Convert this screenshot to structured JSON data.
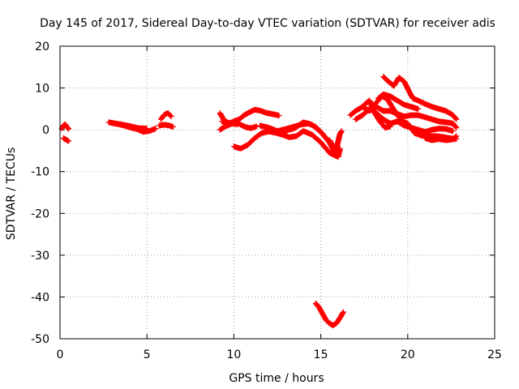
{
  "chart_data": {
    "type": "scatter",
    "title": "Day 145 of 2017, Sidereal Day-to-day VTEC variation (SDTVAR) for receiver adis",
    "xlabel": "GPS time / hours",
    "ylabel": "SDTVAR / TECUs",
    "xlim": [
      0,
      25
    ],
    "ylim": [
      -50,
      20
    ],
    "xticks": [
      0,
      5,
      10,
      15,
      20,
      25
    ],
    "yticks": [
      -50,
      -40,
      -30,
      -20,
      -10,
      0,
      10,
      20
    ],
    "grid": true,
    "legend": "none",
    "marker": "plus",
    "series": [
      {
        "name": "SDTVAR",
        "color": "#ff0000",
        "segments": [
          [
            [
              0.1,
              0.3
            ],
            [
              0.2,
              1.0
            ],
            [
              0.3,
              1.3
            ],
            [
              0.4,
              0.6
            ],
            [
              0.5,
              0.2
            ]
          ],
          [
            [
              0.2,
              -2.0
            ],
            [
              0.35,
              -2.4
            ],
            [
              0.5,
              -2.7
            ]
          ],
          [
            [
              2.8,
              1.8
            ],
            [
              3.2,
              1.5
            ],
            [
              3.6,
              1.1
            ],
            [
              4.0,
              0.6
            ],
            [
              4.4,
              0.2
            ],
            [
              4.8,
              -0.5
            ],
            [
              5.2,
              -0.2
            ],
            [
              5.5,
              0.3
            ]
          ],
          [
            [
              3.0,
              1.6
            ],
            [
              3.5,
              1.3
            ],
            [
              4.0,
              0.9
            ],
            [
              4.5,
              0.4
            ],
            [
              5.0,
              0.3
            ]
          ],
          [
            [
              5.8,
              2.5
            ],
            [
              6.0,
              3.6
            ],
            [
              6.2,
              4.0
            ],
            [
              6.4,
              3.2
            ]
          ],
          [
            [
              5.7,
              1.0
            ],
            [
              6.0,
              1.2
            ],
            [
              6.3,
              1.0
            ],
            [
              6.5,
              0.7
            ]
          ],
          [
            [
              9.2,
              4.0
            ],
            [
              9.4,
              2.5
            ],
            [
              9.7,
              1.5
            ],
            [
              10.0,
              2.0
            ],
            [
              10.3,
              2.5
            ],
            [
              10.6,
              3.5
            ],
            [
              10.9,
              4.2
            ],
            [
              11.2,
              4.8
            ],
            [
              11.5,
              4.6
            ],
            [
              11.9,
              4.0
            ],
            [
              12.3,
              3.7
            ],
            [
              12.6,
              3.4
            ]
          ],
          [
            [
              9.2,
              0.0
            ],
            [
              9.5,
              0.8
            ],
            [
              9.8,
              1.3
            ],
            [
              10.1,
              1.8
            ],
            [
              10.4,
              1.2
            ],
            [
              10.7,
              0.6
            ],
            [
              11.0,
              0.4
            ],
            [
              11.3,
              0.8
            ]
          ],
          [
            [
              9.3,
              2.0
            ],
            [
              9.6,
              1.8
            ],
            [
              9.9,
              1.5
            ],
            [
              10.2,
              1.3
            ]
          ],
          [
            [
              10.0,
              -4.0
            ],
            [
              10.4,
              -4.5
            ],
            [
              10.8,
              -3.6
            ],
            [
              11.2,
              -2.0
            ],
            [
              11.6,
              -0.8
            ],
            [
              12.0,
              -0.4
            ],
            [
              12.4,
              -0.7
            ],
            [
              12.8,
              -1.2
            ],
            [
              13.2,
              -1.8
            ],
            [
              13.6,
              -1.5
            ],
            [
              14.0,
              -0.3
            ],
            [
              14.5,
              -1.2
            ],
            [
              15.0,
              -3.0
            ],
            [
              15.5,
              -5.5
            ],
            [
              16.0,
              -6.5
            ],
            [
              16.1,
              -4.5
            ]
          ],
          [
            [
              11.5,
              1.0
            ],
            [
              12.0,
              0.5
            ],
            [
              12.5,
              -0.3
            ],
            [
              13.0,
              0.2
            ],
            [
              13.5,
              0.8
            ],
            [
              13.9,
              1.3
            ],
            [
              14.3,
              1.5
            ],
            [
              14.7,
              0.7
            ],
            [
              15.1,
              -1.0
            ],
            [
              15.5,
              -3.0
            ],
            [
              15.8,
              -5.0
            ],
            [
              16.0,
              -6.0
            ]
          ],
          [
            [
              12.6,
              -0.5
            ],
            [
              13.0,
              -0.2
            ],
            [
              13.5,
              0.4
            ],
            [
              14.0,
              1.8
            ],
            [
              14.5,
              1.2
            ],
            [
              15.0,
              -0.5
            ],
            [
              15.5,
              -3.0
            ],
            [
              15.8,
              -5.5
            ],
            [
              16.1,
              -5.0
            ]
          ],
          [
            [
              15.5,
              -2.5
            ],
            [
              15.7,
              -4.0
            ],
            [
              15.9,
              -4.5
            ],
            [
              16.1,
              -1.0
            ],
            [
              16.2,
              -0.3
            ]
          ],
          [
            [
              14.7,
              -41.5
            ],
            [
              14.9,
              -42.5
            ],
            [
              15.1,
              -44.0
            ],
            [
              15.3,
              -45.5
            ],
            [
              15.5,
              -46.3
            ],
            [
              15.7,
              -46.8
            ],
            [
              15.9,
              -46.3
            ],
            [
              16.1,
              -45.0
            ],
            [
              16.3,
              -43.6
            ]
          ],
          [
            [
              16.7,
              3.5
            ],
            [
              17.0,
              4.5
            ],
            [
              17.4,
              5.5
            ],
            [
              17.8,
              4.5
            ],
            [
              18.2,
              5.5
            ],
            [
              18.6,
              4.5
            ],
            [
              19.0,
              4.5
            ],
            [
              19.4,
              3.8
            ],
            [
              19.8,
              3.2
            ],
            [
              20.2,
              3.5
            ],
            [
              20.6,
              3.5
            ],
            [
              21.0,
              3.0
            ],
            [
              21.4,
              2.5
            ],
            [
              21.8,
              2.0
            ],
            [
              22.2,
              1.8
            ],
            [
              22.6,
              1.5
            ],
            [
              22.8,
              0.5
            ]
          ],
          [
            [
              17.0,
              2.5
            ],
            [
              17.4,
              3.5
            ],
            [
              17.8,
              5.0
            ],
            [
              18.2,
              6.5
            ],
            [
              18.5,
              8.0
            ],
            [
              18.8,
              7.5
            ],
            [
              19.1,
              5.5
            ],
            [
              19.4,
              3.5
            ],
            [
              19.7,
              2.0
            ],
            [
              20.0,
              1.5
            ],
            [
              20.4,
              -0.8
            ],
            [
              20.8,
              -1.4
            ],
            [
              21.2,
              -1.5
            ],
            [
              21.6,
              -1.5
            ],
            [
              22.0,
              -1.7
            ],
            [
              22.4,
              -2.0
            ],
            [
              22.8,
              -2.2
            ]
          ],
          [
            [
              17.5,
              6.0
            ],
            [
              17.8,
              7.0
            ],
            [
              18.1,
              4.0
            ],
            [
              18.4,
              2.0
            ],
            [
              18.7,
              0.5
            ],
            [
              19.0,
              0.8
            ]
          ],
          [
            [
              18.6,
              12.7
            ],
            [
              18.9,
              11.5
            ],
            [
              19.2,
              10.5
            ],
            [
              19.5,
              12.5
            ],
            [
              19.8,
              11.5
            ],
            [
              20.1,
              9.0
            ],
            [
              20.3,
              7.5
            ],
            [
              20.6,
              7.0
            ],
            [
              21.0,
              6.2
            ],
            [
              21.4,
              5.5
            ],
            [
              21.8,
              5.0
            ],
            [
              22.2,
              4.5
            ],
            [
              22.6,
              3.5
            ],
            [
              22.8,
              2.5
            ]
          ],
          [
            [
              18.3,
              7.5
            ],
            [
              18.6,
              8.5
            ],
            [
              19.0,
              8.0
            ],
            [
              19.4,
              7.0
            ],
            [
              19.8,
              6.0
            ],
            [
              20.2,
              5.5
            ],
            [
              20.6,
              5.0
            ]
          ],
          [
            [
              21.0,
              -2.0
            ],
            [
              21.4,
              -2.5
            ],
            [
              21.8,
              -2.2
            ],
            [
              22.2,
              -2.5
            ],
            [
              22.6,
              -2.3
            ],
            [
              22.8,
              -1.5
            ]
          ],
          [
            [
              18.2,
              4.0
            ],
            [
              18.6,
              2.5
            ],
            [
              19.0,
              1.5
            ],
            [
              19.4,
              2.0
            ],
            [
              19.8,
              1.0
            ],
            [
              20.2,
              0.5
            ],
            [
              20.6,
              0.0
            ],
            [
              21.0,
              -0.5
            ],
            [
              21.4,
              0.0
            ],
            [
              21.8,
              0.3
            ],
            [
              22.2,
              0.2
            ],
            [
              22.6,
              -0.3
            ]
          ]
        ]
      }
    ]
  }
}
